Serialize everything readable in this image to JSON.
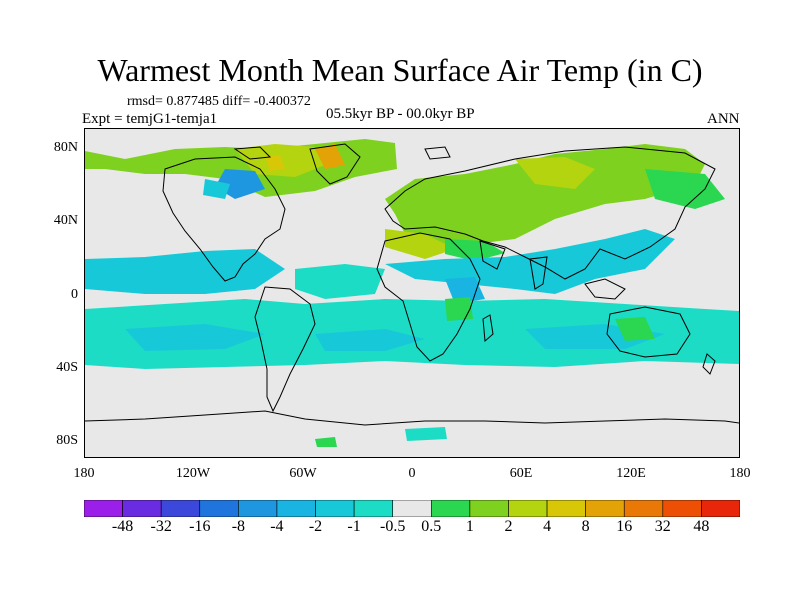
{
  "title": "Warmest Month Mean Surface Air Temp (in C)",
  "stats": "rmsd= 0.877485 diff= -0.400372",
  "experiment": "Expt = temjG1-temja1",
  "period": "05.5kyr BP - 00.0kyr BP",
  "season": "ANN",
  "lat_labels": [
    "80N",
    "40N",
    "0",
    "40S",
    "80S"
  ],
  "lon_labels": [
    "180",
    "120W",
    "60W",
    "0",
    "60E",
    "120E",
    "180"
  ],
  "colorbar": {
    "labels": [
      "-48",
      "-32",
      "-16",
      "-8",
      "-4",
      "-2",
      "-1",
      "-0.5",
      "0.5",
      "1",
      "2",
      "4",
      "8",
      "16",
      "32",
      "48"
    ],
    "colors": [
      "#9b1fe8",
      "#6a2ce0",
      "#3c47dc",
      "#1f74de",
      "#1e97e0",
      "#19b4e2",
      "#17c9d8",
      "#1cdcc6",
      "#e8e8e8",
      "#2bd651",
      "#7fd11f",
      "#b3d40e",
      "#d7c707",
      "#e3a205",
      "#e97806",
      "#ed5005",
      "#e8260a"
    ]
  }
}
